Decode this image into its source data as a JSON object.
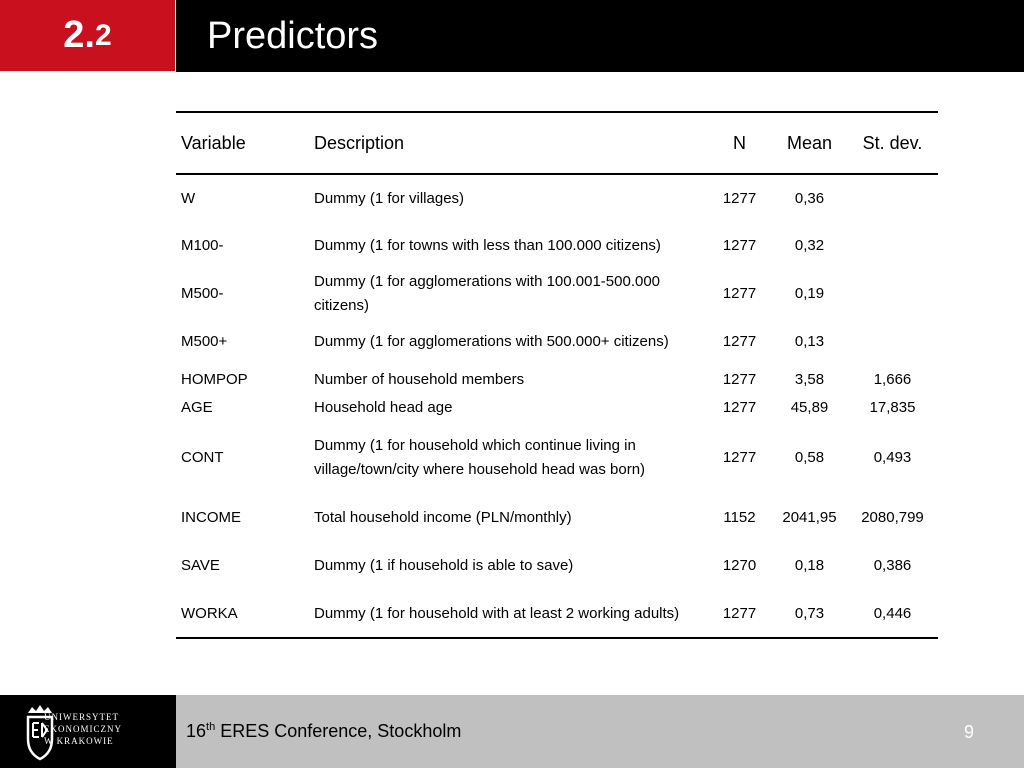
{
  "header": {
    "section_main": "2.",
    "section_sub": "2",
    "title": "Predictors"
  },
  "table": {
    "columns": [
      "Variable",
      "Description",
      "N",
      "Mean",
      "St. dev."
    ],
    "rows": [
      {
        "variable": "W",
        "description": "Dummy (1 for villages)",
        "n": "1277",
        "mean": "0,36",
        "sd": ""
      },
      {
        "variable": "M100-",
        "description": "Dummy (1 for towns with less than 100.000 citizens)",
        "n": "1277",
        "mean": "0,32",
        "sd": ""
      },
      {
        "variable": "M500-",
        "description": "Dummy (1 for agglomerations with 100.001-500.000 citizens)",
        "n": "1277",
        "mean": "0,19",
        "sd": ""
      },
      {
        "variable": "M500+",
        "description": "Dummy (1 for agglomerations with 500.000+ citizens)",
        "n": "1277",
        "mean": "0,13",
        "sd": ""
      },
      {
        "variable": "HOMPOP",
        "description": "Number of household members",
        "n": "1277",
        "mean": "3,58",
        "sd": "1,666"
      },
      {
        "variable": "AGE",
        "description": "Household head age",
        "n": "1277",
        "mean": "45,89",
        "sd": "17,835"
      },
      {
        "variable": "CONT",
        "description": "Dummy (1 for household which continue living in village/town/city where household head was born)",
        "n": "1277",
        "mean": "0,58",
        "sd": "0,493"
      },
      {
        "variable": "INCOME",
        "description": "Total household income (PLN/monthly)",
        "n": "1152",
        "mean": "2041,95",
        "sd": "2080,799"
      },
      {
        "variable": "SAVE",
        "description": "Dummy (1 if household is able to save)",
        "n": "1270",
        "mean": "0,18",
        "sd": "0,386"
      },
      {
        "variable": "WORKA",
        "description": "Dummy (1 for household with at least 2 working adults)",
        "n": "1277",
        "mean": "0,73",
        "sd": "0,446"
      }
    ]
  },
  "footer": {
    "logo_lines": [
      "UNIWERSYTET",
      "EKONOMICZNY",
      "W KRAKOWIE"
    ],
    "conference_num": "16",
    "conference_sup": "th",
    "conference_rest": " ERES Conference, Stockholm",
    "page_number": "9"
  },
  "colors": {
    "accent_red": "#c8101e",
    "header_bg": "#000000",
    "footer_bg": "#c0c0c0"
  }
}
